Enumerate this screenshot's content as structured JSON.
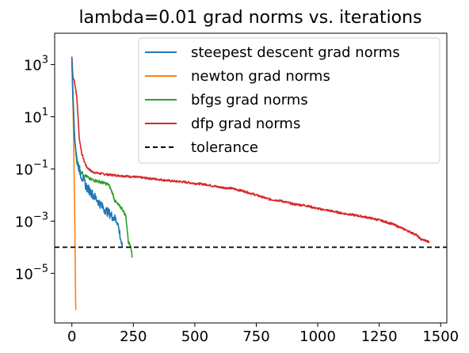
{
  "chart_data": {
    "type": "line",
    "title": "lambda=0.01 grad norms vs. iterations",
    "xlabel": "",
    "ylabel": "",
    "yscale": "log",
    "xlim": [
      -70,
      1525
    ],
    "ylim_log10": [
      -6.9,
      4.2
    ],
    "x_ticks": [
      0,
      250,
      500,
      750,
      1000,
      1250,
      1500
    ],
    "y_ticks": [
      {
        "base": "10",
        "exp": "3",
        "value": 1000
      },
      {
        "base": "10",
        "exp": "1",
        "value": 10
      },
      {
        "base": "10",
        "exp": "−1",
        "value": 0.1
      },
      {
        "base": "10",
        "exp": "−3",
        "value": 0.001
      },
      {
        "base": "10",
        "exp": "−5",
        "value": 1e-05
      }
    ],
    "grid": false,
    "legend_position": "upper right",
    "series": [
      {
        "name": "steepest descent grad norms",
        "color": "#1f77b4",
        "style": "solid",
        "noise": 0.35,
        "x": [
          0,
          3,
          6,
          10,
          15,
          20,
          30,
          40,
          60,
          80,
          100,
          130,
          160,
          185,
          205
        ],
        "y": [
          2000,
          100,
          20,
          3,
          0.7,
          0.25,
          0.1,
          0.05,
          0.02,
          0.012,
          0.007,
          0.003,
          0.0017,
          0.001,
          0.0001
        ]
      },
      {
        "name": "newton grad norms",
        "color": "#ff7f0e",
        "style": "solid",
        "noise": 0,
        "x": [
          0,
          3,
          6,
          9,
          12,
          14,
          15,
          16
        ],
        "y": [
          2000,
          150,
          5,
          0.1,
          0.001,
          1e-05,
          1e-06,
          4e-07
        ]
      },
      {
        "name": "bfgs grad norms",
        "color": "#2ca02c",
        "style": "solid",
        "noise": 0.12,
        "x": [
          0,
          5,
          10,
          15,
          20,
          25,
          35,
          50,
          75,
          100,
          125,
          150,
          165,
          175,
          190,
          205,
          220,
          230,
          240,
          245
        ],
        "y": [
          1500,
          50,
          3,
          0.5,
          0.2,
          0.12,
          0.08,
          0.06,
          0.04,
          0.035,
          0.03,
          0.025,
          0.012,
          0.006,
          0.004,
          0.003,
          0.0015,
          0.00015,
          0.00012,
          4e-05
        ]
      },
      {
        "name": "dfp grad norms",
        "color": "#d62728",
        "style": "solid",
        "noise": 0.08,
        "x": [
          0,
          3,
          5,
          10,
          15,
          20,
          25,
          30,
          40,
          50,
          60,
          80,
          100,
          150,
          200,
          250,
          300,
          350,
          400,
          450,
          500,
          550,
          600,
          650,
          700,
          750,
          800,
          850,
          900,
          950,
          1000,
          1050,
          1100,
          1150,
          1200,
          1250,
          1300,
          1350,
          1400,
          1420,
          1440,
          1455
        ],
        "y": [
          2000,
          500,
          300,
          250,
          120,
          60,
          10,
          1.5,
          0.4,
          0.2,
          0.12,
          0.08,
          0.07,
          0.06,
          0.055,
          0.05,
          0.045,
          0.04,
          0.035,
          0.032,
          0.028,
          0.025,
          0.02,
          0.018,
          0.014,
          0.01,
          0.007,
          0.006,
          0.0045,
          0.004,
          0.003,
          0.0025,
          0.002,
          0.0017,
          0.0014,
          0.0011,
          0.0008,
          0.0005,
          0.0003,
          0.0002,
          0.00018,
          0.00015
        ]
      },
      {
        "name": "tolerance",
        "color": "#000000",
        "style": "dashed",
        "noise": 0,
        "x": [
          -70,
          1525
        ],
        "y": [
          0.0001,
          0.0001
        ]
      }
    ]
  }
}
